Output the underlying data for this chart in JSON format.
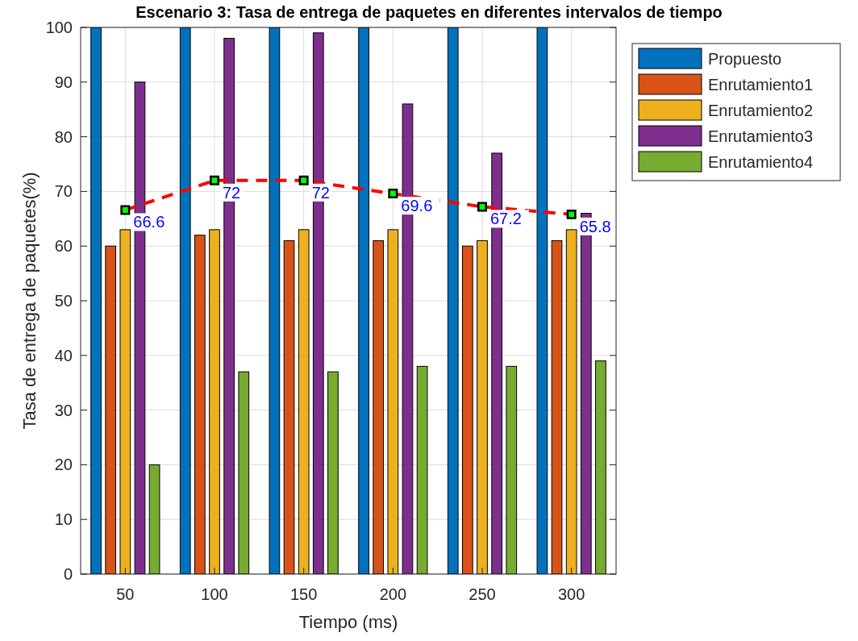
{
  "chart_data": {
    "type": "bar",
    "title": "Escenario 3: Tasa de entrega de paquetes en diferentes intervalos de tiempo",
    "xlabel": "Tiempo (ms)",
    "ylabel": "Tasa de entrega de paquetes(%)",
    "categories": [
      "50",
      "100",
      "150",
      "200",
      "250",
      "300"
    ],
    "ylim": [
      0,
      100
    ],
    "yticks": [
      0,
      10,
      20,
      30,
      40,
      50,
      60,
      70,
      80,
      90,
      100
    ],
    "grid": true,
    "legend": "right",
    "series": [
      {
        "name": "Propuesto",
        "color": "#0072bd",
        "values": [
          100,
          100,
          100,
          100,
          100,
          100
        ]
      },
      {
        "name": "Enrutamiento1",
        "color": "#d95319",
        "values": [
          60,
          62,
          61,
          61,
          60,
          61
        ]
      },
      {
        "name": "Enrutamiento2",
        "color": "#edb120",
        "values": [
          63,
          63,
          63,
          63,
          61,
          63
        ]
      },
      {
        "name": "Enrutamiento3",
        "color": "#7e2f8e",
        "values": [
          90,
          98,
          99,
          86,
          77,
          66
        ]
      },
      {
        "name": "Enrutamiento4",
        "color": "#77ac30",
        "values": [
          20,
          37,
          37,
          38,
          38,
          39
        ]
      },
      {
        "type": "line",
        "color": "#ff0000",
        "marker": "square",
        "line_style": "dashed",
        "values": [
          66.6,
          72,
          72,
          69.6,
          67.2,
          65.8
        ],
        "value_labels": [
          "66.6",
          "72",
          "72",
          "69.6",
          "67.2",
          "65.8"
        ]
      }
    ]
  }
}
